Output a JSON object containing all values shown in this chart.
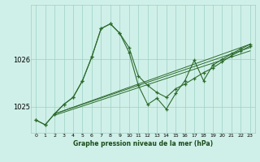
{
  "background_color": "#cff0e8",
  "grid_color": "#9ecfc4",
  "line_color": "#2d6b2d",
  "title": "Graphe pression niveau de la mer (hPa)",
  "xlim": [
    -0.5,
    23.5
  ],
  "ylim": [
    1024.45,
    1027.15
  ],
  "yticks": [
    1025,
    1026
  ],
  "xticks": [
    0,
    1,
    2,
    3,
    4,
    5,
    6,
    7,
    8,
    9,
    10,
    11,
    12,
    13,
    14,
    15,
    16,
    17,
    18,
    19,
    20,
    21,
    22,
    23
  ],
  "series1_x": [
    0,
    1,
    2,
    3,
    4,
    5,
    6,
    7,
    8,
    9,
    10,
    11,
    12,
    13,
    14,
    15,
    16,
    17,
    18,
    19,
    20,
    21,
    22,
    23
  ],
  "series1_y": [
    1024.72,
    1024.62,
    1024.85,
    1025.05,
    1025.2,
    1025.55,
    1026.05,
    1026.65,
    1026.75,
    1026.55,
    1026.25,
    1025.65,
    1025.45,
    1025.3,
    1025.2,
    1025.38,
    1025.48,
    1025.6,
    1025.72,
    1025.82,
    1025.95,
    1026.08,
    1026.18,
    1026.28
  ],
  "series2_x": [
    0,
    1,
    2,
    3,
    4,
    5,
    6,
    7,
    8,
    9,
    10,
    11,
    12,
    13,
    14,
    15,
    16,
    17,
    18,
    19,
    20,
    21,
    22,
    23
  ],
  "series2_y": [
    1024.72,
    1024.62,
    1024.85,
    1025.05,
    1025.2,
    1025.55,
    1026.05,
    1026.65,
    1026.75,
    1026.55,
    1026.15,
    1025.45,
    1025.05,
    1025.18,
    1024.95,
    1025.28,
    1025.55,
    1025.98,
    1025.55,
    1025.88,
    1026.0,
    1026.12,
    1026.22,
    1026.32
  ],
  "line3_x": [
    2,
    23
  ],
  "line3_y": [
    1024.85,
    1026.32
  ],
  "line4_x": [
    2,
    23
  ],
  "line4_y": [
    1024.85,
    1026.25
  ],
  "line5_x": [
    2,
    23
  ],
  "line5_y": [
    1024.82,
    1026.18
  ]
}
